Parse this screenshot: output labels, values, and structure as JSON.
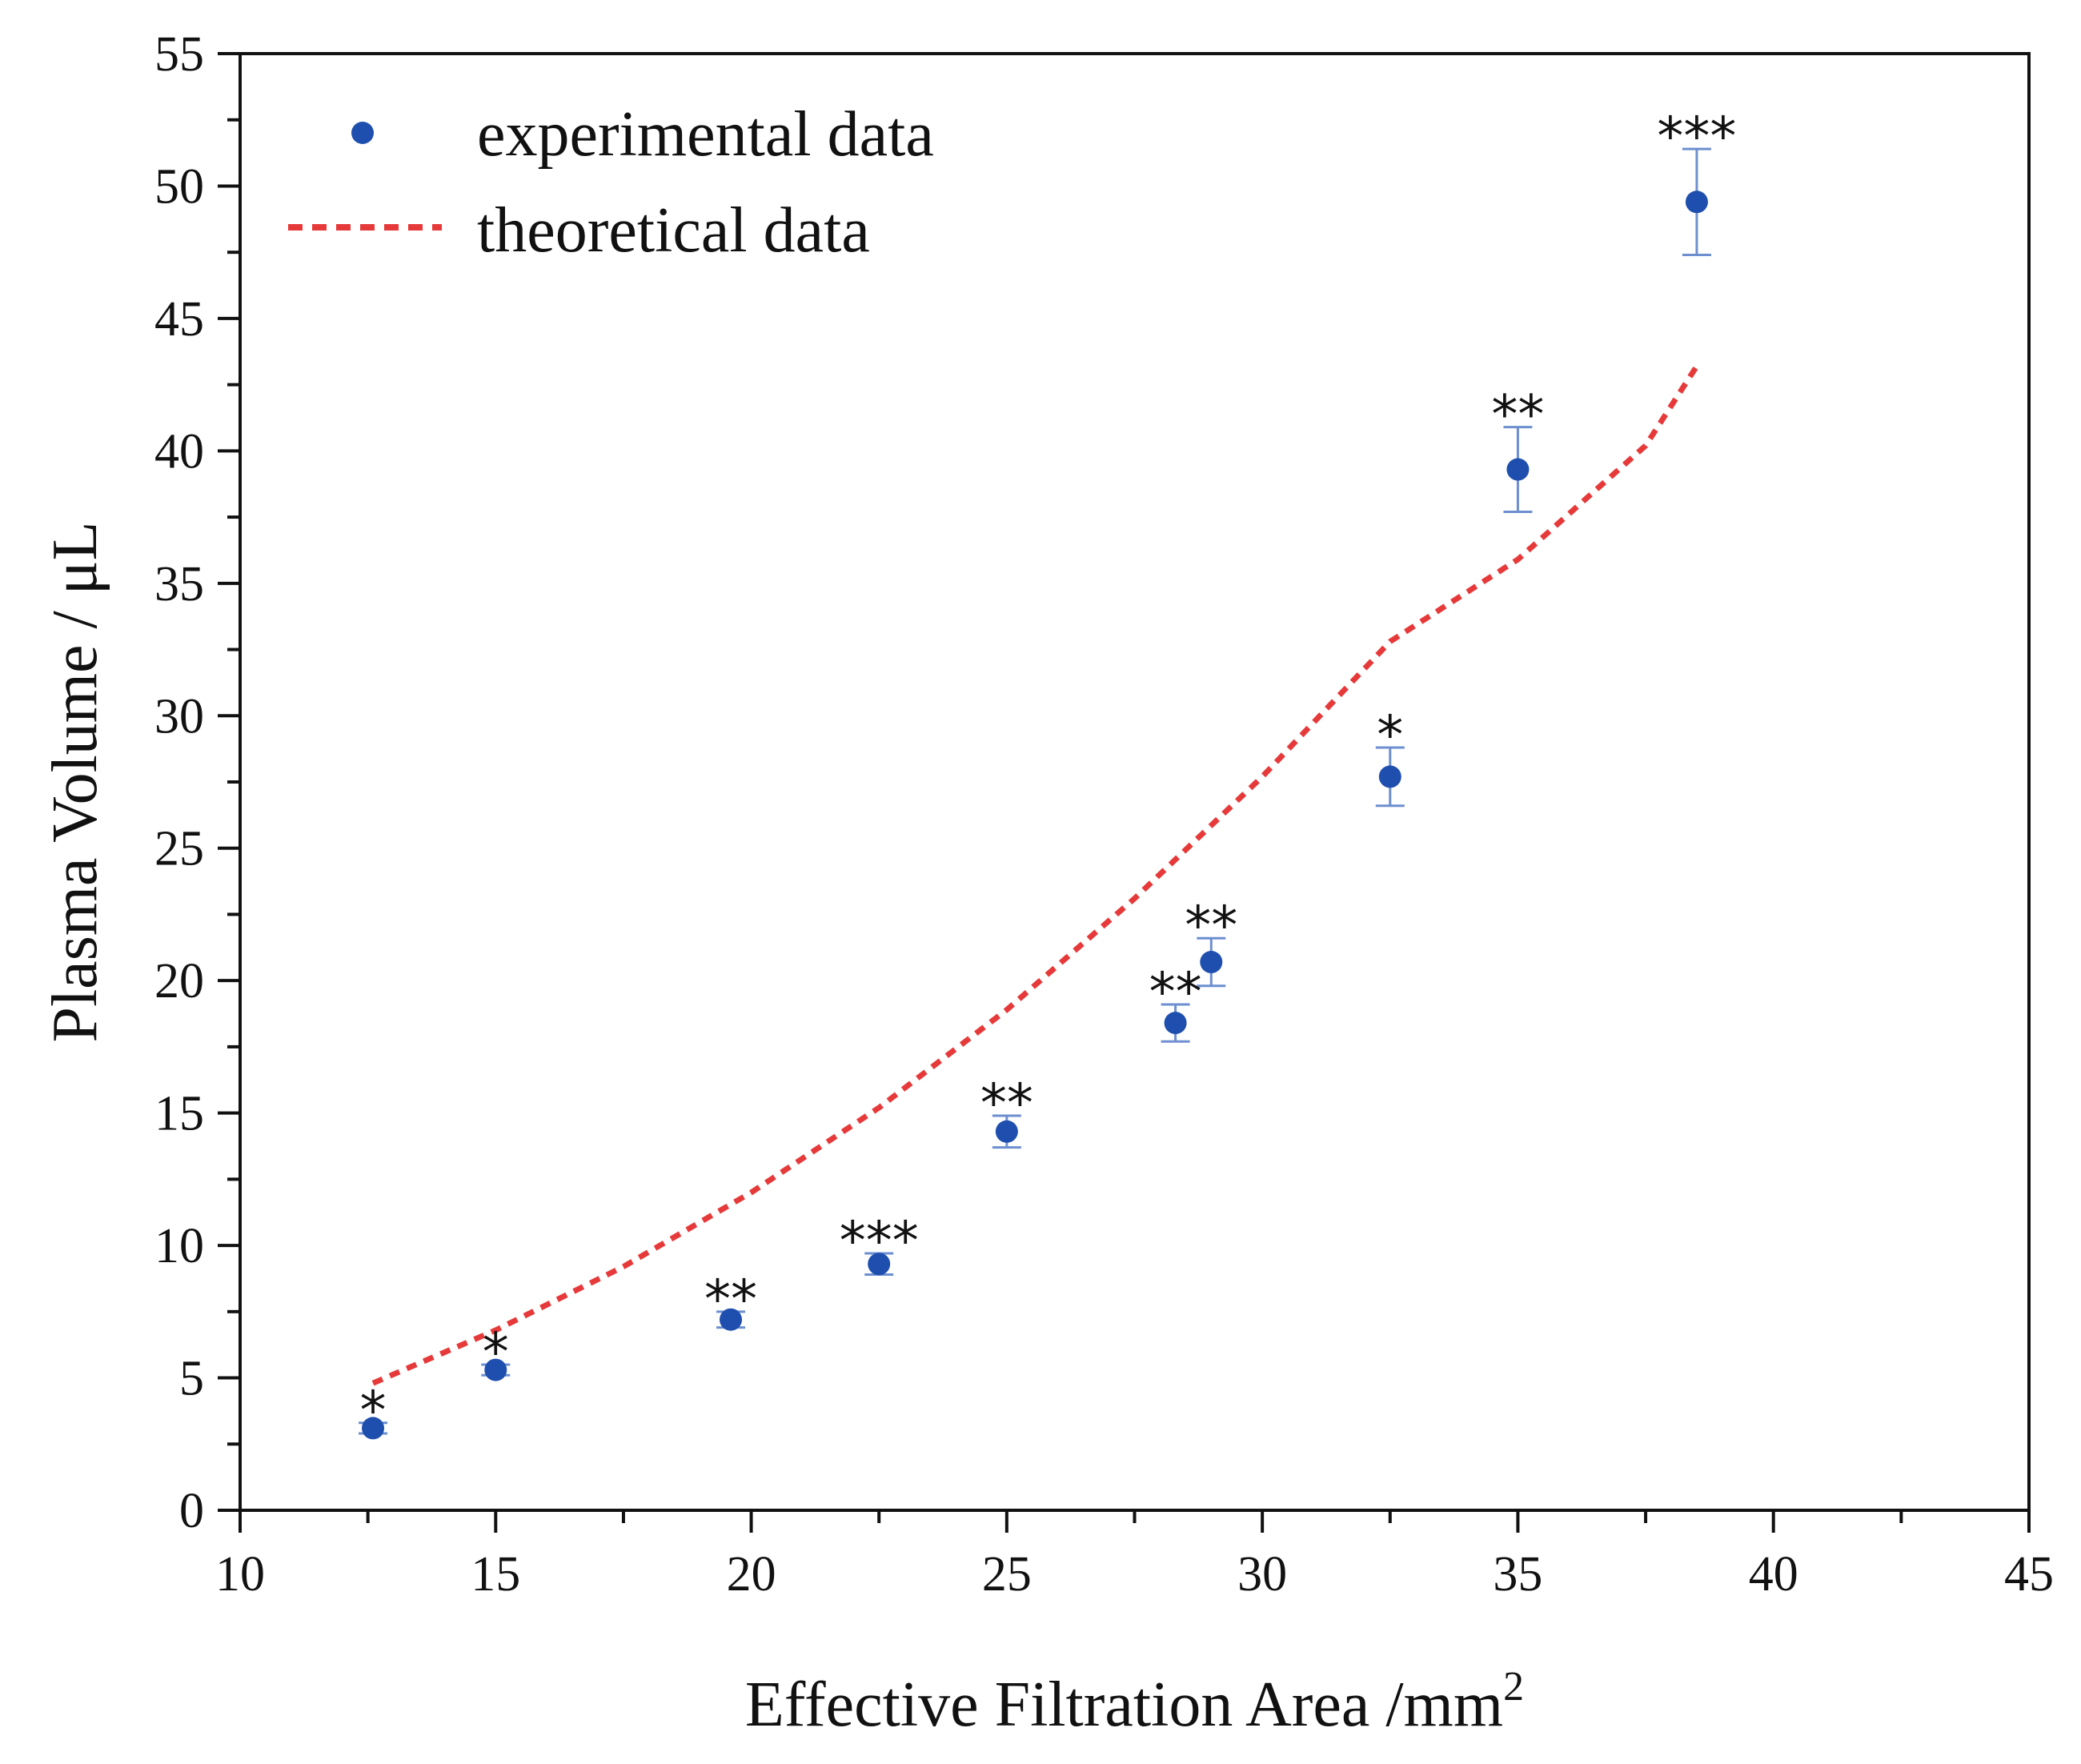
{
  "colors": {
    "experimental": "#1f4fae",
    "theoretical": "#e63a3a",
    "axis": "#111111"
  },
  "chart_data": {
    "type": "scatter",
    "title": "",
    "xlabel": "Effective Filtration Area /mm",
    "xlabel_superscript": "2",
    "ylabel": "Plasma Volume / μL",
    "xlim": [
      10,
      45
    ],
    "ylim": [
      0,
      55
    ],
    "x_ticks": [
      "10",
      "15",
      "20",
      "25",
      "30",
      "35",
      "40",
      "45"
    ],
    "y_ticks": [
      "0",
      "5",
      "10",
      "15",
      "20",
      "25",
      "30",
      "35",
      "40",
      "45",
      "50",
      "55"
    ],
    "grid": false,
    "legend_position": "top-left",
    "series": [
      {
        "name": "experimental data",
        "kind": "scatter_with_error",
        "points": [
          {
            "x": 12.6,
            "y": 3.1,
            "err": 0.2,
            "sig": "*"
          },
          {
            "x": 15.0,
            "y": 5.3,
            "err": 0.2,
            "sig": "*"
          },
          {
            "x": 19.6,
            "y": 7.2,
            "err": 0.3,
            "sig": "**"
          },
          {
            "x": 22.5,
            "y": 9.3,
            "err": 0.4,
            "sig": "***"
          },
          {
            "x": 25.0,
            "y": 14.3,
            "err": 0.6,
            "sig": "**"
          },
          {
            "x": 28.3,
            "y": 18.4,
            "err": 0.7,
            "sig": "**"
          },
          {
            "x": 29.0,
            "y": 20.7,
            "err": 0.9,
            "sig": "**"
          },
          {
            "x": 32.5,
            "y": 27.7,
            "err": 1.1,
            "sig": "*"
          },
          {
            "x": 35.0,
            "y": 39.3,
            "err": 1.6,
            "sig": "**"
          },
          {
            "x": 38.5,
            "y": 49.4,
            "err": 2.0,
            "sig": "***"
          }
        ]
      },
      {
        "name": "theoretical data",
        "kind": "dashed_line",
        "x": [
          12.6,
          15.0,
          17.5,
          20.0,
          22.5,
          25.0,
          27.5,
          30.0,
          32.5,
          35.0,
          37.5,
          38.5
        ],
        "y": [
          4.8,
          6.8,
          9.2,
          12.0,
          15.2,
          18.9,
          23.1,
          27.7,
          32.8,
          35.9,
          40.2,
          43.2
        ]
      }
    ]
  }
}
